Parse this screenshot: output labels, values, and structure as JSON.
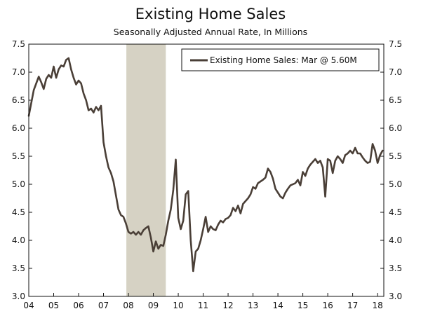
{
  "chart_data": {
    "type": "line",
    "title": "Existing Home Sales",
    "subtitle": "Seasonally Adjusted Annual Rate, In Millions",
    "legend": "Existing Home Sales: Mar @ 5.60M",
    "legend_position": "top-right",
    "xlabel": "",
    "ylabel": "",
    "ylim": [
      3.0,
      7.5
    ],
    "yticks": [
      "3.0",
      "3.5",
      "4.0",
      "4.5",
      "5.0",
      "5.5",
      "6.0",
      "6.5",
      "7.0",
      "7.5"
    ],
    "xticks": [
      "04",
      "05",
      "06",
      "07",
      "08",
      "09",
      "10",
      "11",
      "12",
      "13",
      "14",
      "15",
      "16",
      "17",
      "18"
    ],
    "xlim": [
      2004.0,
      2018.25
    ],
    "recession": [
      2007.9167,
      2009.5
    ],
    "series": [
      {
        "name": "Existing Home Sales",
        "color": "#4a3f37",
        "x": [
          2004.0,
          2004.1,
          2004.2,
          2004.3,
          2004.4,
          2004.5,
          2004.6,
          2004.7,
          2004.8,
          2004.9,
          2005.0,
          2005.1,
          2005.2,
          2005.3,
          2005.4,
          2005.5,
          2005.6,
          2005.7,
          2005.8,
          2005.9,
          2006.0,
          2006.1,
          2006.2,
          2006.3,
          2006.4,
          2006.5,
          2006.6,
          2006.7,
          2006.8,
          2006.9,
          2007.0,
          2007.1,
          2007.2,
          2007.3,
          2007.4,
          2007.5,
          2007.6,
          2007.7,
          2007.8,
          2007.9,
          2008.0,
          2008.1,
          2008.2,
          2008.3,
          2008.4,
          2008.5,
          2008.6,
          2008.7,
          2008.8,
          2008.9,
          2009.0,
          2009.1,
          2009.2,
          2009.3,
          2009.4,
          2009.5,
          2009.6,
          2009.7,
          2009.8,
          2009.9,
          2010.0,
          2010.1,
          2010.2,
          2010.3,
          2010.4,
          2010.5,
          2010.6,
          2010.7,
          2010.8,
          2010.9,
          2011.0,
          2011.1,
          2011.2,
          2011.3,
          2011.4,
          2011.5,
          2011.6,
          2011.7,
          2011.8,
          2011.9,
          2012.0,
          2012.1,
          2012.2,
          2012.3,
          2012.4,
          2012.5,
          2012.6,
          2012.7,
          2012.8,
          2012.9,
          2013.0,
          2013.1,
          2013.2,
          2013.3,
          2013.4,
          2013.5,
          2013.6,
          2013.7,
          2013.8,
          2013.9,
          2014.0,
          2014.1,
          2014.2,
          2014.3,
          2014.4,
          2014.5,
          2014.6,
          2014.7,
          2014.8,
          2014.9,
          2015.0,
          2015.1,
          2015.2,
          2015.3,
          2015.4,
          2015.5,
          2015.6,
          2015.7,
          2015.8,
          2015.9,
          2016.0,
          2016.1,
          2016.2,
          2016.3,
          2016.4,
          2016.5,
          2016.6,
          2016.7,
          2016.8,
          2016.9,
          2017.0,
          2017.1,
          2017.2,
          2017.3,
          2017.4,
          2017.5,
          2017.6,
          2017.7,
          2017.8,
          2017.9,
          2018.0,
          2018.1,
          2018.2
        ],
        "values": [
          6.22,
          6.45,
          6.68,
          6.8,
          6.92,
          6.82,
          6.7,
          6.88,
          6.95,
          6.9,
          7.1,
          6.9,
          7.05,
          7.12,
          7.1,
          7.22,
          7.25,
          7.05,
          6.9,
          6.78,
          6.85,
          6.8,
          6.62,
          6.5,
          6.32,
          6.35,
          6.28,
          6.38,
          6.32,
          6.4,
          5.75,
          5.5,
          5.3,
          5.2,
          5.05,
          4.8,
          4.55,
          4.45,
          4.42,
          4.3,
          4.15,
          4.12,
          4.15,
          4.1,
          4.15,
          4.1,
          4.18,
          4.22,
          4.25,
          4.05,
          3.8,
          3.98,
          3.85,
          3.92,
          3.9,
          4.1,
          4.35,
          4.55,
          4.9,
          5.44,
          4.4,
          4.2,
          4.35,
          4.82,
          4.88,
          4.0,
          3.45,
          3.8,
          3.85,
          4.0,
          4.2,
          4.42,
          4.15,
          4.25,
          4.2,
          4.18,
          4.28,
          4.35,
          4.32,
          4.38,
          4.4,
          4.45,
          4.58,
          4.52,
          4.62,
          4.48,
          4.65,
          4.7,
          4.75,
          4.82,
          4.95,
          4.92,
          5.02,
          5.05,
          5.08,
          5.12,
          5.28,
          5.22,
          5.1,
          4.92,
          4.85,
          4.78,
          4.75,
          4.85,
          4.92,
          4.98,
          5.0,
          5.02,
          5.08,
          4.98,
          5.22,
          5.15,
          5.28,
          5.35,
          5.4,
          5.45,
          5.38,
          5.42,
          5.3,
          4.78,
          5.45,
          5.42,
          5.2,
          5.42,
          5.5,
          5.45,
          5.38,
          5.52,
          5.55,
          5.6,
          5.55,
          5.65,
          5.55,
          5.55,
          5.48,
          5.42,
          5.38,
          5.4,
          5.72,
          5.6,
          5.38,
          5.52,
          5.6
        ]
      }
    ]
  }
}
